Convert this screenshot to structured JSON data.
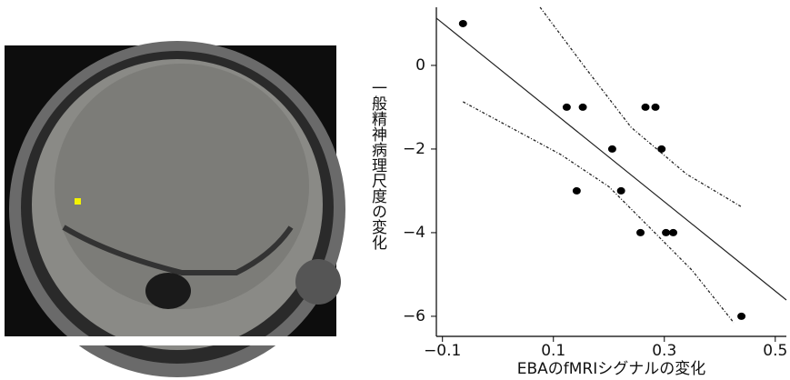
{
  "chart_data": {
    "type": "scatter",
    "xlabel": "EBAのfMRIシグナルの変化",
    "ylabel": "一般精神病理尺度の変化",
    "x": [
      -0.063,
      0.124,
      0.153,
      0.266,
      0.284,
      0.206,
      0.295,
      0.142,
      0.222,
      0.257,
      0.303,
      0.316,
      0.439
    ],
    "values": [
      1,
      -1,
      -1,
      -1,
      -1,
      -2,
      -2,
      -3,
      -3,
      -4,
      -4,
      -4,
      -6
    ],
    "color": "#000000",
    "regression": {
      "x": [
        -0.111,
        0.52
      ],
      "values": [
        1.13,
        -5.61
      ]
    },
    "confidence_upper": {
      "x": [
        0.076,
        0.16,
        0.24,
        0.34,
        0.44
      ],
      "values": [
        1.39,
        -0.1,
        -1.48,
        -2.6,
        -3.39
      ]
    },
    "confidence_lower": {
      "x": [
        -0.063,
        0.113,
        0.2,
        0.273,
        0.35,
        0.425
      ],
      "values": [
        -0.87,
        -2.13,
        -2.9,
        -3.87,
        -4.9,
        -6.15
      ]
    },
    "xlim": [
      -0.111,
      0.52
    ],
    "ylim": [
      -6.48,
      1.39
    ],
    "xticks": [
      {
        "value": -0.1,
        "label": "−0.1"
      },
      0.1,
      0.3,
      0.5
    ],
    "yticks": [
      0,
      {
        "value": -2,
        "label": "−2"
      },
      {
        "value": -4,
        "label": "−4"
      },
      {
        "value": -6,
        "label": "−6"
      }
    ]
  }
}
